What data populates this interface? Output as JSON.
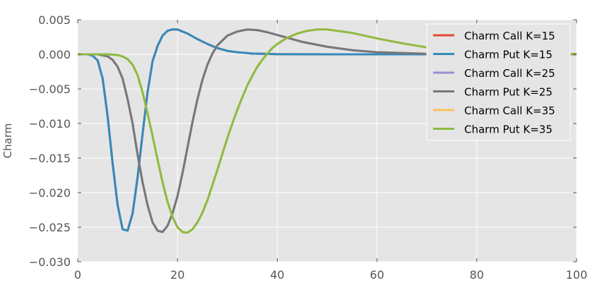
{
  "chart_data": {
    "type": "line",
    "title": "",
    "xlabel": "",
    "ylabel": "Charm",
    "xlim": [
      0,
      100
    ],
    "ylim": [
      -0.03,
      0.005
    ],
    "xticks": [
      0,
      20,
      40,
      60,
      80,
      100
    ],
    "xtick_labels": [
      "0",
      "20",
      "40",
      "60",
      "80",
      "100"
    ],
    "yticks": [
      -0.03,
      -0.025,
      -0.02,
      -0.015,
      -0.01,
      -0.005,
      0.0,
      0.005
    ],
    "ytick_labels": [
      "−0.030",
      "−0.025",
      "−0.020",
      "−0.015",
      "−0.010",
      "−0.005",
      "0.000",
      "0.005"
    ],
    "grid": true,
    "legend_position": "top-right",
    "background_color": "#e5e5e5",
    "series": [
      {
        "name": "Charm Call K=15",
        "color": "#e24a33",
        "x": [
          0,
          2,
          3,
          4,
          5,
          6,
          7,
          8,
          9,
          10,
          11,
          12,
          13,
          14,
          15,
          16,
          17,
          18,
          19,
          20,
          22,
          24,
          26,
          28,
          30,
          32,
          35,
          40,
          50,
          60,
          70
        ],
        "y": [
          0.0,
          0.0,
          -0.0002,
          -0.0009,
          -0.0035,
          -0.009,
          -0.0158,
          -0.0218,
          -0.0253,
          -0.0255,
          -0.023,
          -0.0178,
          -0.0115,
          -0.0055,
          -0.001,
          0.0012,
          0.0027,
          0.0034,
          0.0036,
          0.0036,
          0.003,
          0.0022,
          0.0015,
          0.0009,
          0.0005,
          0.0003,
          0.00012,
          2e-05,
          0.0,
          0.0,
          0.0
        ]
      },
      {
        "name": "Charm Put K=15",
        "color": "#348abd",
        "x": [
          0,
          2,
          3,
          4,
          5,
          6,
          7,
          8,
          9,
          10,
          11,
          12,
          13,
          14,
          15,
          16,
          17,
          18,
          19,
          20,
          22,
          24,
          26,
          28,
          30,
          32,
          35,
          40,
          50,
          60,
          70
        ],
        "y": [
          0.0,
          0.0,
          -0.0002,
          -0.0009,
          -0.0035,
          -0.009,
          -0.0158,
          -0.0218,
          -0.0253,
          -0.0255,
          -0.023,
          -0.0178,
          -0.0115,
          -0.0055,
          -0.001,
          0.0012,
          0.0027,
          0.0034,
          0.0036,
          0.0036,
          0.003,
          0.0022,
          0.0015,
          0.0009,
          0.0005,
          0.0003,
          0.00012,
          2e-05,
          0.0,
          0.0,
          0.0
        ]
      },
      {
        "name": "Charm Call K=25",
        "color": "#988ed5",
        "x": [
          0,
          4,
          6,
          7,
          8,
          9,
          10,
          11,
          12,
          13,
          14,
          15,
          16,
          17,
          18,
          19,
          20,
          21,
          22,
          23,
          24,
          25,
          26,
          27,
          28,
          30,
          32,
          34,
          36,
          38,
          40,
          45,
          50,
          55,
          60,
          70,
          80,
          90,
          100
        ],
        "y": [
          0.0,
          0.0,
          -0.0003,
          -0.0008,
          -0.0018,
          -0.0035,
          -0.0065,
          -0.01,
          -0.0145,
          -0.0185,
          -0.0218,
          -0.0243,
          -0.0255,
          -0.0257,
          -0.0248,
          -0.023,
          -0.0205,
          -0.0172,
          -0.0135,
          -0.0098,
          -0.0065,
          -0.0037,
          -0.0015,
          0.0001,
          0.0013,
          0.0027,
          0.0033,
          0.0036,
          0.0035,
          0.0032,
          0.0028,
          0.0018,
          0.0011,
          0.0006,
          0.0003,
          8e-05,
          2e-05,
          0.0,
          0.0
        ]
      },
      {
        "name": "Charm Put K=25",
        "color": "#777777",
        "x": [
          0,
          4,
          6,
          7,
          8,
          9,
          10,
          11,
          12,
          13,
          14,
          15,
          16,
          17,
          18,
          19,
          20,
          21,
          22,
          23,
          24,
          25,
          26,
          27,
          28,
          30,
          32,
          34,
          36,
          38,
          40,
          45,
          50,
          55,
          60,
          70,
          80,
          90,
          100
        ],
        "y": [
          0.0,
          0.0,
          -0.0003,
          -0.0008,
          -0.0018,
          -0.0035,
          -0.0065,
          -0.01,
          -0.0145,
          -0.0185,
          -0.0218,
          -0.0243,
          -0.0255,
          -0.0257,
          -0.0248,
          -0.023,
          -0.0205,
          -0.0172,
          -0.0135,
          -0.0098,
          -0.0065,
          -0.0037,
          -0.0015,
          0.0001,
          0.0013,
          0.0027,
          0.0033,
          0.0036,
          0.0035,
          0.0032,
          0.0028,
          0.0018,
          0.0011,
          0.0006,
          0.0003,
          8e-05,
          2e-05,
          0.0,
          0.0
        ]
      },
      {
        "name": "Charm Call K=35",
        "color": "#fbc15e",
        "x": [
          0,
          6,
          8,
          9,
          10,
          11,
          12,
          13,
          14,
          15,
          16,
          17,
          18,
          19,
          20,
          21,
          22,
          23,
          24,
          25,
          26,
          27,
          28,
          29,
          30,
          31,
          32,
          33,
          34,
          35,
          36,
          37,
          38,
          39,
          40,
          42,
          44,
          46,
          48,
          50,
          52,
          55,
          60,
          65,
          70,
          80,
          90,
          100
        ],
        "y": [
          0.0,
          0.0,
          -0.0001,
          -0.0003,
          -0.0007,
          -0.0015,
          -0.003,
          -0.0055,
          -0.0085,
          -0.0118,
          -0.0152,
          -0.0185,
          -0.0213,
          -0.0235,
          -0.025,
          -0.0257,
          -0.0258,
          -0.0253,
          -0.0243,
          -0.0229,
          -0.0211,
          -0.0189,
          -0.0167,
          -0.0144,
          -0.0121,
          -0.01,
          -0.008,
          -0.0062,
          -0.0045,
          -0.0031,
          -0.0018,
          -0.0008,
          0.0001,
          0.0009,
          0.0015,
          0.0024,
          0.003,
          0.0034,
          0.0036,
          0.0036,
          0.0034,
          0.0031,
          0.0023,
          0.0016,
          0.001,
          0.0004,
          0.00015,
          5e-05
        ]
      },
      {
        "name": "Charm Put K=35",
        "color": "#8eba42",
        "x": [
          0,
          6,
          8,
          9,
          10,
          11,
          12,
          13,
          14,
          15,
          16,
          17,
          18,
          19,
          20,
          21,
          22,
          23,
          24,
          25,
          26,
          27,
          28,
          29,
          30,
          31,
          32,
          33,
          34,
          35,
          36,
          37,
          38,
          39,
          40,
          42,
          44,
          46,
          48,
          50,
          52,
          55,
          60,
          65,
          70,
          80,
          90,
          100
        ],
        "y": [
          0.0,
          0.0,
          -0.0001,
          -0.0003,
          -0.0007,
          -0.0015,
          -0.003,
          -0.0055,
          -0.0085,
          -0.0118,
          -0.0152,
          -0.0185,
          -0.0213,
          -0.0235,
          -0.025,
          -0.0257,
          -0.0258,
          -0.0253,
          -0.0243,
          -0.0229,
          -0.0211,
          -0.0189,
          -0.0167,
          -0.0144,
          -0.0121,
          -0.01,
          -0.008,
          -0.0062,
          -0.0045,
          -0.0031,
          -0.0018,
          -0.0008,
          0.0001,
          0.0009,
          0.0015,
          0.0024,
          0.003,
          0.0034,
          0.0036,
          0.0036,
          0.0034,
          0.0031,
          0.0023,
          0.0016,
          0.001,
          0.0004,
          0.00015,
          5e-05
        ]
      }
    ]
  }
}
